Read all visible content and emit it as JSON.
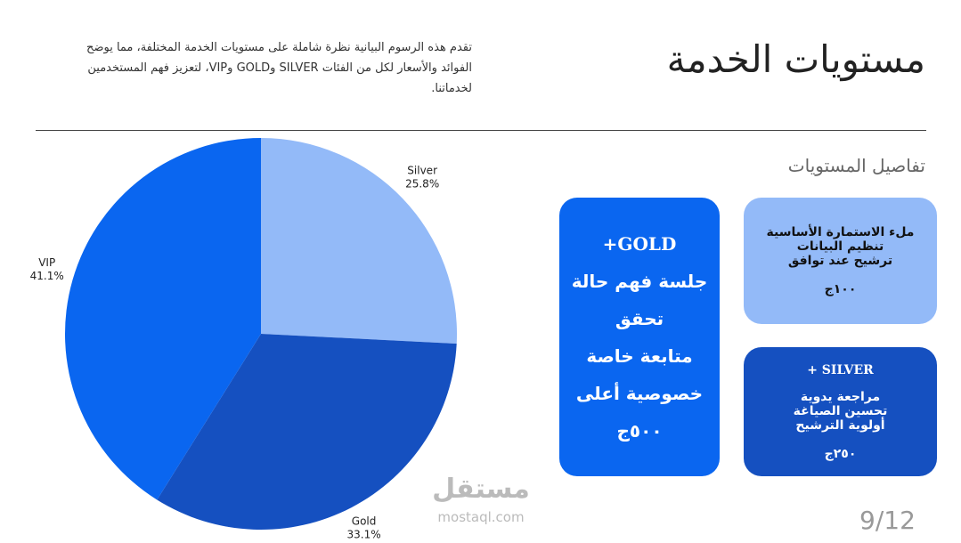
{
  "header": {
    "title": "مستويات الخدمة",
    "description": [
      "تقدم هذه الرسوم البيانية نظرة شاملة على مستويات الخدمة المختلفة، مما يوضح",
      "الفوائد والأسعار لكل من الفئات SILVER وGOLD وVIP، لتعزيز فهم المستخدمين",
      "لخدماتنا."
    ]
  },
  "chart_data": {
    "type": "pie",
    "categories": [
      "Silver",
      "Gold",
      "VIP"
    ],
    "values": [
      25.8,
      33.1,
      41.1
    ],
    "value_labels": [
      "25.8%",
      "33.1%",
      "41.1%"
    ],
    "colors": [
      "#93baf8",
      "#1550c0",
      "#0a66f0"
    ]
  },
  "details": {
    "heading": "تفاصيل المستويات",
    "cards": [
      {
        "title": "+GOLD",
        "items": [
          "جلسة فهم حالة",
          "تحقق",
          "متابعة خاصة",
          "خصوصية أعلى"
        ],
        "price": "٥٠٠ج"
      },
      {
        "items": [
          "ملء الاستمارة الأساسية",
          "تنظيم البيانات",
          "ترشيح عند توافق"
        ],
        "price": "١٠٠ج"
      },
      {
        "title": "+ SILVER",
        "items": [
          "مراجعة يدوية",
          "تحسين الصياغة",
          "أولوية الترشيح"
        ],
        "price": "٢٥٠ج"
      }
    ]
  },
  "footer": {
    "watermark": "مستقل",
    "watermark_url": "mostaql.com",
    "page": "9/12"
  }
}
